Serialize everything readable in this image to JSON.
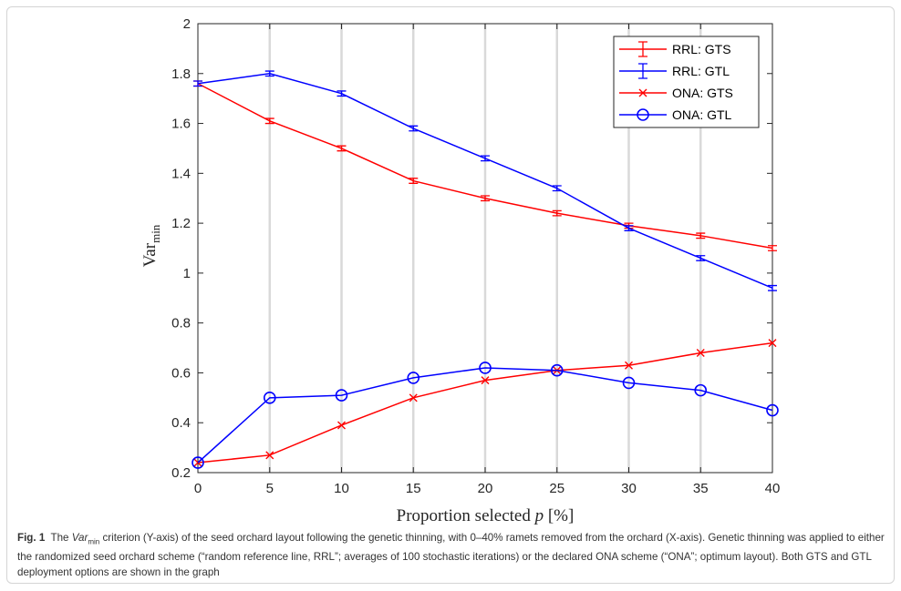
{
  "chart_data": {
    "type": "line",
    "xlabel_text": "Proportion selected ",
    "xlabel_var": "p",
    "xlabel_unit": " [%]",
    "ylabel_main": "Var",
    "ylabel_sub": "min",
    "x": [
      0,
      5,
      10,
      15,
      20,
      25,
      30,
      35,
      40
    ],
    "xlim": [
      0,
      40
    ],
    "ylim": [
      0.2,
      2
    ],
    "x_ticks": [
      "0",
      "5",
      "10",
      "15",
      "20",
      "25",
      "30",
      "35",
      "40"
    ],
    "y_ticks": [
      "0.2",
      "0.4",
      "0.6",
      "0.8",
      "1",
      "1.2",
      "1.4",
      "1.6",
      "1.8",
      "2"
    ],
    "y_tick_values": [
      0.2,
      0.4,
      0.6,
      0.8,
      1.0,
      1.2,
      1.4,
      1.6,
      1.8,
      2.0
    ],
    "vertical_grid": true,
    "legend_position": "top-right",
    "series": [
      {
        "name": "RRL: GTS",
        "color": "#ff0000",
        "marker": "errorbar",
        "values": [
          1.76,
          1.61,
          1.5,
          1.37,
          1.3,
          1.24,
          1.19,
          1.15,
          1.1
        ],
        "errors": [
          0.01,
          0.01,
          0.01,
          0.01,
          0.01,
          0.01,
          0.01,
          0.01,
          0.01
        ]
      },
      {
        "name": "RRL: GTL",
        "color": "#0000ff",
        "marker": "errorbar",
        "values": [
          1.76,
          1.8,
          1.72,
          1.58,
          1.46,
          1.34,
          1.18,
          1.06,
          0.94
        ],
        "errors": [
          0.01,
          0.01,
          0.01,
          0.01,
          0.01,
          0.01,
          0.01,
          0.01,
          0.01
        ]
      },
      {
        "name": "ONA: GTS",
        "color": "#ff0000",
        "marker": "x",
        "values": [
          0.24,
          0.27,
          0.39,
          0.5,
          0.57,
          0.61,
          0.63,
          0.68,
          0.72
        ]
      },
      {
        "name": "ONA: GTL",
        "color": "#0000ff",
        "marker": "o",
        "values": [
          0.24,
          0.5,
          0.51,
          0.58,
          0.62,
          0.61,
          0.56,
          0.53,
          0.45
        ]
      }
    ]
  },
  "caption": {
    "fig_label": "Fig. 1",
    "pre_var": "The ",
    "var": "Var",
    "var_sub": "min",
    "text": " criterion (Y-axis) of the seed orchard layout following the genetic thinning, with 0–40% ramets removed from the orchard (X-axis). Genetic thinning was applied to either the randomized seed orchard scheme (“random reference line, RRL”; averages of 100 stochastic iterations) or the declared ONA scheme (“ONA”; optimum layout). Both GTS and GTL deployment options are shown in the graph"
  }
}
